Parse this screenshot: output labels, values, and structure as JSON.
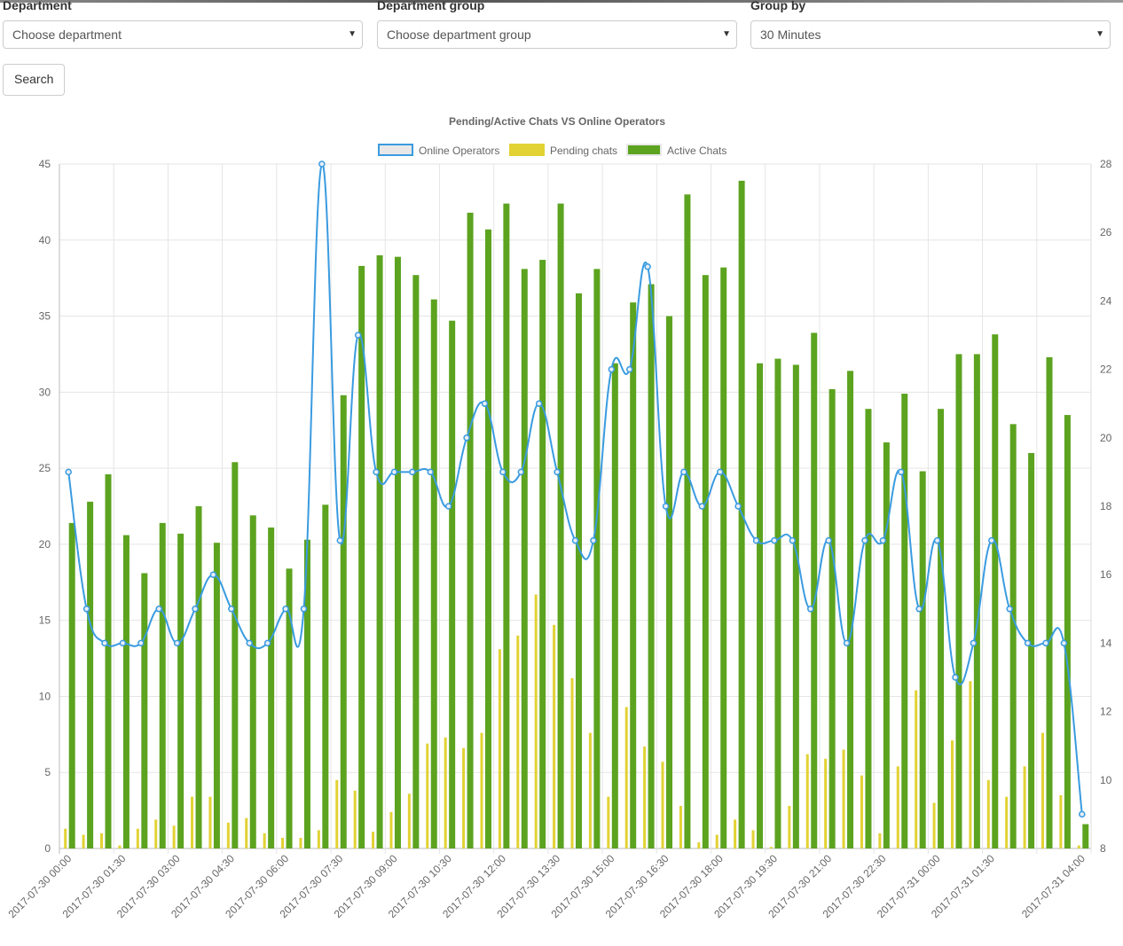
{
  "filters": {
    "department": {
      "label": "Department",
      "value": "Choose department"
    },
    "department_group": {
      "label": "Department group",
      "value": "Choose department group"
    },
    "group_by": {
      "label": "Group by",
      "value": "30 Minutes"
    },
    "search_label": "Search"
  },
  "chart_data": {
    "type": "bar",
    "title": "Pending/Active Chats VS Online Operators",
    "legend_position": "top",
    "grid": true,
    "y_left": {
      "min": 0,
      "max": 45,
      "step": 5
    },
    "y_right": {
      "min": 8,
      "max": 28,
      "step": 2
    },
    "x_tick_labels": [
      "2017-07-30 00:00",
      "2017-07-30 01:30",
      "2017-07-30 03:00",
      "2017-07-30 04:30",
      "2017-07-30 06:00",
      "2017-07-30 07:30",
      "2017-07-30 09:00",
      "2017-07-30 10:30",
      "2017-07-30 12:00",
      "2017-07-30 13:30",
      "2017-07-30 15:00",
      "2017-07-30 16:30",
      "2017-07-30 18:00",
      "2017-07-30 19:30",
      "2017-07-30 21:00",
      "2017-07-30 22:30",
      "2017-07-31 00:00",
      "2017-07-31 01:30",
      "2017-07-31 04:00"
    ],
    "x_tick_indices": [
      0,
      3,
      6,
      9,
      12,
      15,
      18,
      21,
      24,
      27,
      30,
      33,
      36,
      39,
      42,
      45,
      48,
      51,
      56
    ],
    "series": [
      {
        "name": "Online Operators",
        "type": "line",
        "axis": "right",
        "color": "#3a9be0",
        "values": [
          19,
          15,
          14,
          14,
          14,
          15,
          14,
          15,
          16,
          15,
          14,
          14,
          15,
          15,
          28,
          17,
          23,
          19,
          19,
          19,
          19,
          18,
          20,
          21,
          19,
          19,
          21,
          19,
          17,
          17,
          22,
          22,
          25,
          18,
          19,
          18,
          19,
          18,
          17,
          17,
          17,
          15,
          17,
          14,
          17,
          17,
          19,
          15,
          17,
          13,
          14,
          17,
          15,
          14,
          14,
          14,
          9
        ]
      },
      {
        "name": "Pending chats",
        "type": "bar",
        "axis": "left",
        "color": "#e2d234",
        "values": [
          1.3,
          0.9,
          1.0,
          0.2,
          1.3,
          1.9,
          1.5,
          3.4,
          3.4,
          1.7,
          2.0,
          1.0,
          0.7,
          0.7,
          1.2,
          4.5,
          3.8,
          1.1,
          2.4,
          3.6,
          6.9,
          7.3,
          6.6,
          7.6,
          13.1,
          14.0,
          16.7,
          14.7,
          11.2,
          7.6,
          3.4,
          9.3,
          6.7,
          5.7,
          2.8,
          0.4,
          0.9,
          1.9,
          1.2,
          0.1,
          2.8,
          6.2,
          5.9,
          6.5,
          4.8,
          1.0,
          5.4,
          10.4,
          3.0,
          7.1,
          11.0,
          4.5,
          3.4,
          5.4,
          7.6,
          3.5,
          0.2
        ]
      },
      {
        "name": "Active Chats",
        "type": "bar",
        "axis": "left",
        "color": "#5ca31f",
        "values": [
          21.4,
          22.8,
          24.6,
          20.6,
          18.1,
          21.4,
          20.7,
          22.5,
          20.1,
          25.4,
          21.9,
          21.1,
          18.4,
          20.3,
          22.6,
          29.8,
          38.3,
          39.0,
          38.9,
          37.7,
          36.1,
          34.7,
          41.8,
          40.7,
          42.4,
          38.1,
          38.7,
          42.4,
          36.5,
          38.1,
          31.9,
          35.9,
          37.1,
          35.0,
          43.0,
          37.7,
          38.2,
          43.9,
          31.9,
          32.2,
          31.8,
          33.9,
          30.2,
          31.4,
          28.9,
          26.7,
          29.9,
          24.8,
          28.9,
          32.5,
          32.5,
          33.8,
          27.9,
          26.0,
          32.3,
          28.5,
          1.6
        ]
      }
    ]
  }
}
